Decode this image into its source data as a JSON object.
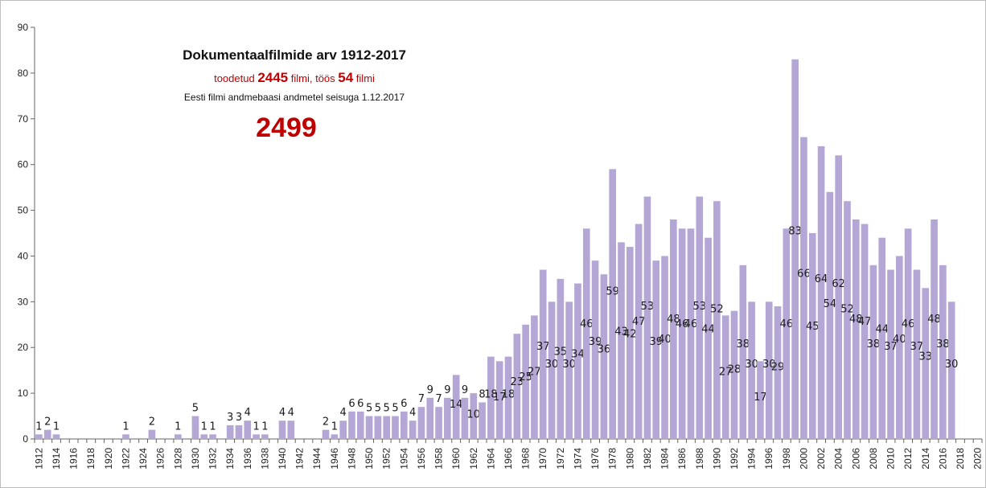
{
  "chart_data": {
    "type": "bar",
    "title": "Dokumentaalfilmide arv 1912-2017",
    "subtitle": {
      "prefix": "toodetud ",
      "produced": "2445",
      "mid1": " filmi, töös ",
      "in_progress": "54",
      "mid2": " filmi"
    },
    "source_note": "Eesti filmi andmebaasi andmetel seisuga 1.12.2017",
    "total": "2499",
    "x_range": [
      1912,
      2020
    ],
    "x_tick_step": 2,
    "ylim": [
      0,
      90
    ],
    "y_ticks": [
      0,
      10,
      20,
      30,
      40,
      50,
      60,
      70,
      80,
      90
    ],
    "bar_color": "#b4a7d6",
    "grid": false,
    "data": [
      {
        "year": 1912,
        "value": 1
      },
      {
        "year": 1913,
        "value": 2
      },
      {
        "year": 1914,
        "value": 1
      },
      {
        "year": 1922,
        "value": 1
      },
      {
        "year": 1925,
        "value": 2
      },
      {
        "year": 1928,
        "value": 1
      },
      {
        "year": 1930,
        "value": 5
      },
      {
        "year": 1931,
        "value": 1
      },
      {
        "year": 1932,
        "value": 1
      },
      {
        "year": 1934,
        "value": 3
      },
      {
        "year": 1935,
        "value": 3
      },
      {
        "year": 1936,
        "value": 4
      },
      {
        "year": 1937,
        "value": 1
      },
      {
        "year": 1938,
        "value": 1
      },
      {
        "year": 1940,
        "value": 4
      },
      {
        "year": 1941,
        "value": 4
      },
      {
        "year": 1945,
        "value": 2
      },
      {
        "year": 1946,
        "value": 1
      },
      {
        "year": 1947,
        "value": 4
      },
      {
        "year": 1948,
        "value": 6
      },
      {
        "year": 1949,
        "value": 6
      },
      {
        "year": 1950,
        "value": 5
      },
      {
        "year": 1951,
        "value": 5
      },
      {
        "year": 1952,
        "value": 5
      },
      {
        "year": 1953,
        "value": 5
      },
      {
        "year": 1954,
        "value": 6
      },
      {
        "year": 1955,
        "value": 4
      },
      {
        "year": 1956,
        "value": 7
      },
      {
        "year": 1957,
        "value": 9
      },
      {
        "year": 1958,
        "value": 7
      },
      {
        "year": 1959,
        "value": 9
      },
      {
        "year": 1960,
        "value": 14
      },
      {
        "year": 1961,
        "value": 9
      },
      {
        "year": 1962,
        "value": 10
      },
      {
        "year": 1963,
        "value": 8
      },
      {
        "year": 1964,
        "value": 18
      },
      {
        "year": 1965,
        "value": 17
      },
      {
        "year": 1966,
        "value": 18
      },
      {
        "year": 1967,
        "value": 23
      },
      {
        "year": 1968,
        "value": 25
      },
      {
        "year": 1969,
        "value": 27
      },
      {
        "year": 1970,
        "value": 37
      },
      {
        "year": 1971,
        "value": 30
      },
      {
        "year": 1972,
        "value": 35
      },
      {
        "year": 1973,
        "value": 30
      },
      {
        "year": 1974,
        "value": 34
      },
      {
        "year": 1975,
        "value": 46
      },
      {
        "year": 1976,
        "value": 39
      },
      {
        "year": 1977,
        "value": 36
      },
      {
        "year": 1978,
        "value": 59
      },
      {
        "year": 1979,
        "value": 43
      },
      {
        "year": 1980,
        "value": 42
      },
      {
        "year": 1981,
        "value": 47
      },
      {
        "year": 1982,
        "value": 53
      },
      {
        "year": 1983,
        "value": 39
      },
      {
        "year": 1984,
        "value": 40
      },
      {
        "year": 1985,
        "value": 48
      },
      {
        "year": 1986,
        "value": 46
      },
      {
        "year": 1987,
        "value": 46
      },
      {
        "year": 1988,
        "value": 53
      },
      {
        "year": 1989,
        "value": 44
      },
      {
        "year": 1990,
        "value": 52
      },
      {
        "year": 1991,
        "value": 27
      },
      {
        "year": 1992,
        "value": 28
      },
      {
        "year": 1993,
        "value": 38
      },
      {
        "year": 1994,
        "value": 30
      },
      {
        "year": 1995,
        "value": 17
      },
      {
        "year": 1996,
        "value": 30
      },
      {
        "year": 1997,
        "value": 29
      },
      {
        "year": 1998,
        "value": 46
      },
      {
        "year": 1999,
        "value": 83
      },
      {
        "year": 2000,
        "value": 66
      },
      {
        "year": 2001,
        "value": 45
      },
      {
        "year": 2002,
        "value": 64
      },
      {
        "year": 2003,
        "value": 54
      },
      {
        "year": 2004,
        "value": 62
      },
      {
        "year": 2005,
        "value": 52
      },
      {
        "year": 2006,
        "value": 48
      },
      {
        "year": 2007,
        "value": 47
      },
      {
        "year": 2008,
        "value": 38
      },
      {
        "year": 2009,
        "value": 44
      },
      {
        "year": 2010,
        "value": 37
      },
      {
        "year": 2011,
        "value": 40
      },
      {
        "year": 2012,
        "value": 46
      },
      {
        "year": 2013,
        "value": 37
      },
      {
        "year": 2014,
        "value": 33
      },
      {
        "year": 2015,
        "value": 48
      },
      {
        "year": 2016,
        "value": 38
      },
      {
        "year": 2017,
        "value": 30
      }
    ]
  }
}
